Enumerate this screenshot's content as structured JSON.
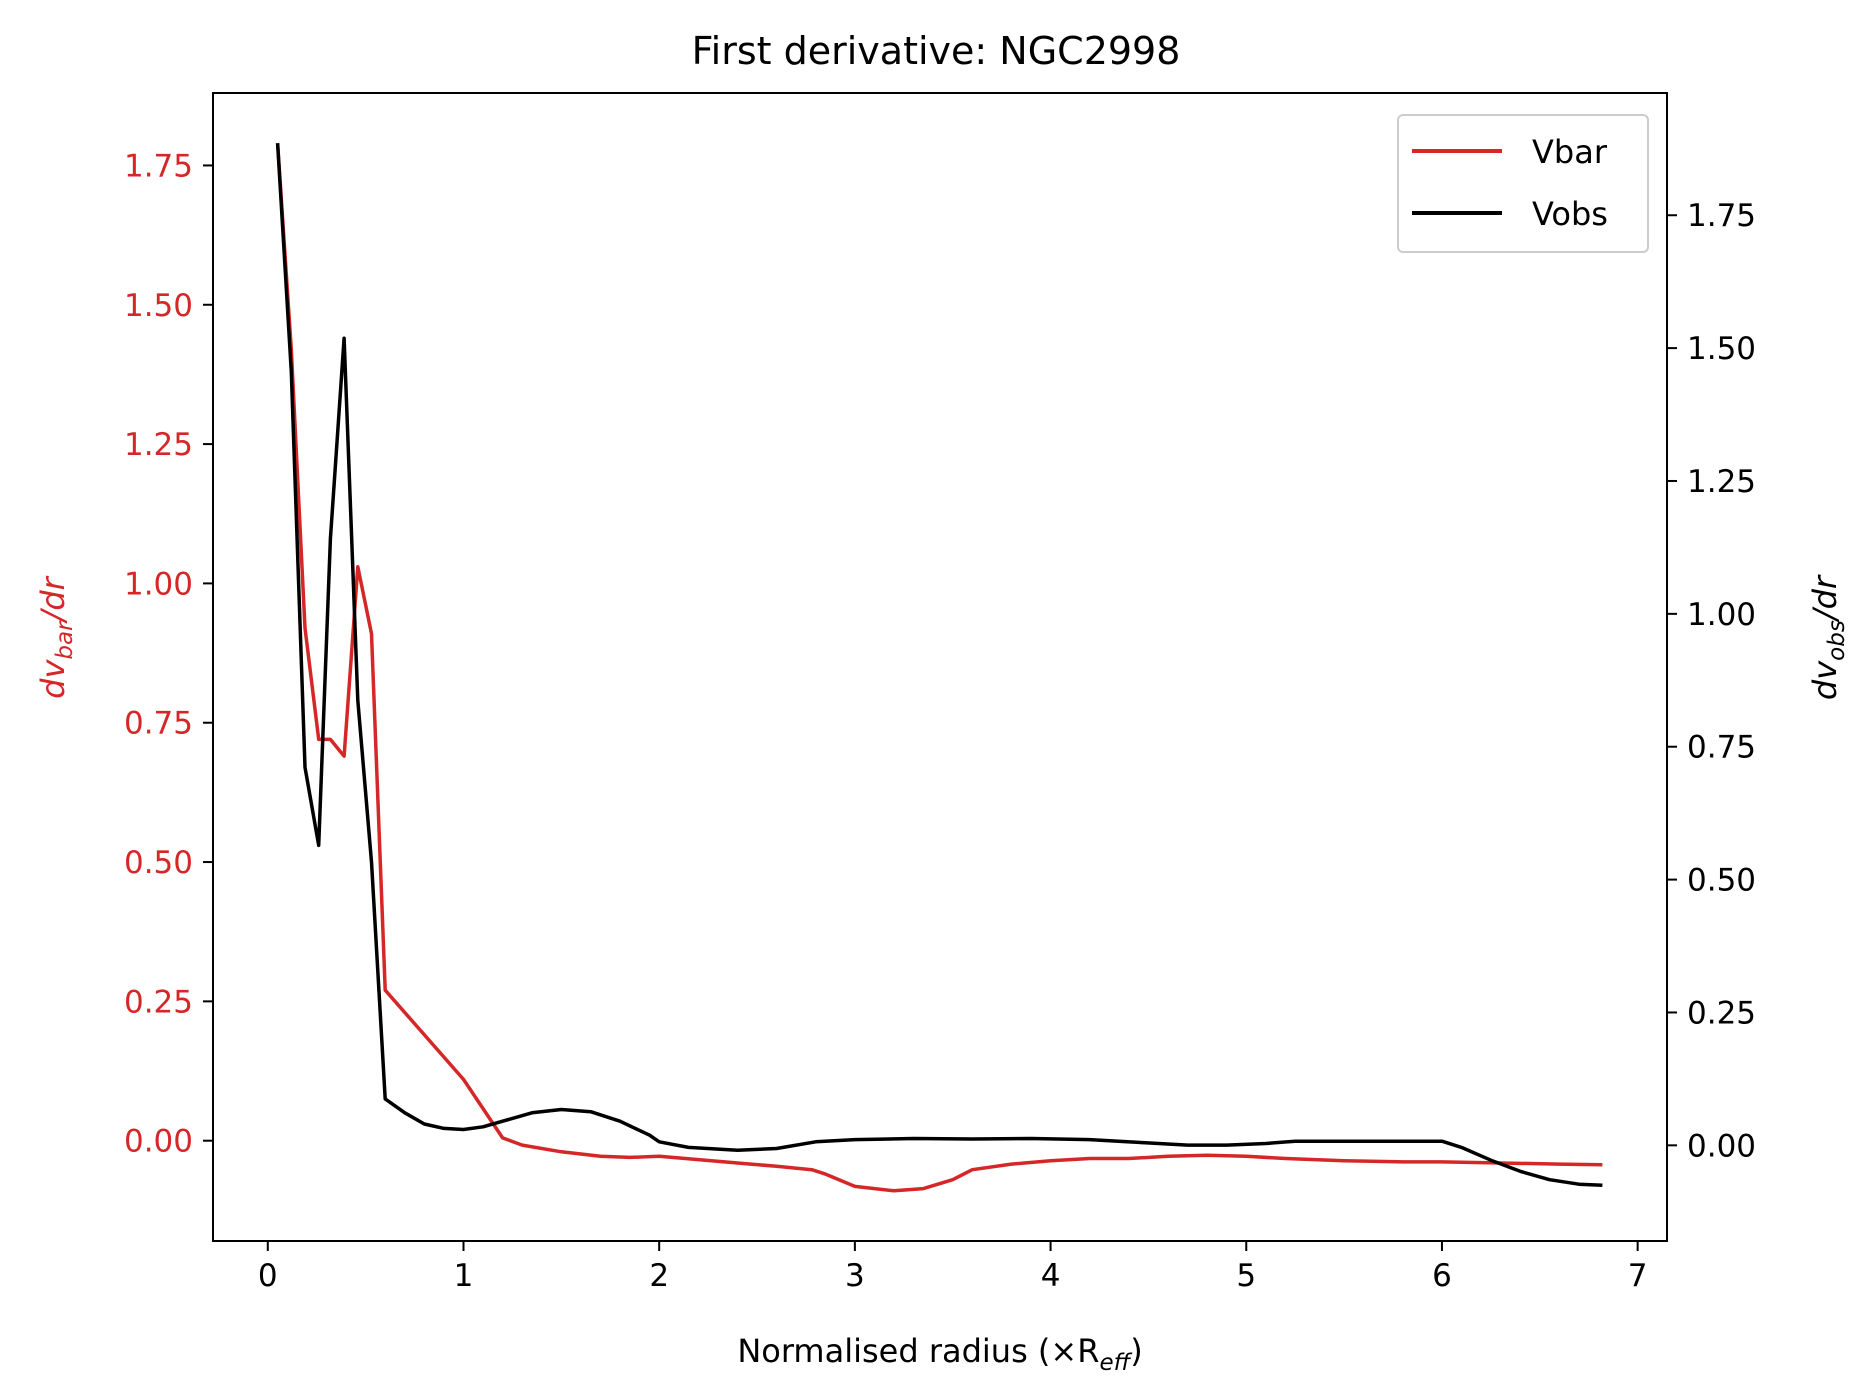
{
  "chart_data": {
    "type": "line",
    "title": "First derivative: NGC2998",
    "xlabel": "Normalised radius (×R",
    "xlabel_sub": "eff",
    "xlabel_close": ")",
    "ylabel_left": {
      "main": "dv",
      "sub": "bar",
      "rest": "/dr"
    },
    "ylabel_right": {
      "main": "dv",
      "sub": "obs",
      "rest": "/dr"
    },
    "xlim": [
      -0.28,
      7.15
    ],
    "ylim_left": [
      -0.18,
      1.88
    ],
    "ylim_right": [
      -0.18,
      1.98
    ],
    "x_ticks": [
      "0",
      "1",
      "2",
      "3",
      "4",
      "5",
      "6",
      "7"
    ],
    "y_ticks_left": [
      "0.00",
      "0.25",
      "0.50",
      "0.75",
      "1.00",
      "1.25",
      "1.50",
      "1.75"
    ],
    "y_ticks_right": [
      "0.00",
      "0.25",
      "0.50",
      "0.75",
      "1.00",
      "1.25",
      "1.50",
      "1.75"
    ],
    "grid": false,
    "legend_position": "top-right",
    "colors": {
      "vbar": "#d62728",
      "vobs": "#000000",
      "frame": "#000000"
    },
    "series": [
      {
        "name": "Vbar",
        "axis": "left",
        "points": [
          [
            0.05,
            1.79
          ],
          [
            0.12,
            1.42
          ],
          [
            0.19,
            0.92
          ],
          [
            0.26,
            0.72
          ],
          [
            0.32,
            0.72
          ],
          [
            0.39,
            0.69
          ],
          [
            0.46,
            1.03
          ],
          [
            0.53,
            0.91
          ],
          [
            0.6,
            0.27
          ],
          [
            1.0,
            0.11
          ],
          [
            1.2,
            0.005
          ],
          [
            1.3,
            -0.008
          ],
          [
            1.5,
            -0.02
          ],
          [
            1.7,
            -0.028
          ],
          [
            1.85,
            -0.03
          ],
          [
            2.0,
            -0.028
          ],
          [
            2.2,
            -0.034
          ],
          [
            2.4,
            -0.04
          ],
          [
            2.6,
            -0.046
          ],
          [
            2.78,
            -0.052
          ],
          [
            2.85,
            -0.06
          ],
          [
            3.0,
            -0.082
          ],
          [
            3.2,
            -0.09
          ],
          [
            3.35,
            -0.086
          ],
          [
            3.5,
            -0.07
          ],
          [
            3.6,
            -0.052
          ],
          [
            3.8,
            -0.042
          ],
          [
            4.0,
            -0.036
          ],
          [
            4.2,
            -0.032
          ],
          [
            4.4,
            -0.032
          ],
          [
            4.6,
            -0.028
          ],
          [
            4.8,
            -0.026
          ],
          [
            5.0,
            -0.028
          ],
          [
            5.2,
            -0.032
          ],
          [
            5.5,
            -0.036
          ],
          [
            5.8,
            -0.038
          ],
          [
            6.0,
            -0.038
          ],
          [
            6.3,
            -0.04
          ],
          [
            6.6,
            -0.042
          ],
          [
            6.82,
            -0.043
          ]
        ]
      },
      {
        "name": "Vobs",
        "axis": "left",
        "points": [
          [
            0.05,
            1.79
          ],
          [
            0.12,
            1.38
          ],
          [
            0.19,
            0.67
          ],
          [
            0.26,
            0.53
          ],
          [
            0.32,
            1.08
          ],
          [
            0.39,
            1.44
          ],
          [
            0.46,
            0.79
          ],
          [
            0.53,
            0.5
          ],
          [
            0.6,
            0.075
          ],
          [
            0.7,
            0.05
          ],
          [
            0.8,
            0.03
          ],
          [
            0.9,
            0.022
          ],
          [
            1.0,
            0.02
          ],
          [
            1.1,
            0.025
          ],
          [
            1.2,
            0.035
          ],
          [
            1.35,
            0.05
          ],
          [
            1.5,
            0.056
          ],
          [
            1.65,
            0.052
          ],
          [
            1.8,
            0.035
          ],
          [
            1.95,
            0.01
          ],
          [
            2.0,
            -0.002
          ],
          [
            2.15,
            -0.012
          ],
          [
            2.4,
            -0.017
          ],
          [
            2.6,
            -0.014
          ],
          [
            2.8,
            -0.002
          ],
          [
            3.0,
            0.002
          ],
          [
            3.3,
            0.004
          ],
          [
            3.6,
            0.003
          ],
          [
            3.9,
            0.004
          ],
          [
            4.2,
            0.002
          ],
          [
            4.45,
            -0.003
          ],
          [
            4.7,
            -0.008
          ],
          [
            4.9,
            -0.008
          ],
          [
            5.1,
            -0.005
          ],
          [
            5.25,
            -0.001
          ],
          [
            5.5,
            -0.001
          ],
          [
            5.8,
            -0.001
          ],
          [
            6.0,
            -0.001
          ],
          [
            6.1,
            -0.012
          ],
          [
            6.25,
            -0.035
          ],
          [
            6.4,
            -0.055
          ],
          [
            6.55,
            -0.07
          ],
          [
            6.7,
            -0.078
          ],
          [
            6.82,
            -0.08
          ]
        ]
      }
    ]
  }
}
